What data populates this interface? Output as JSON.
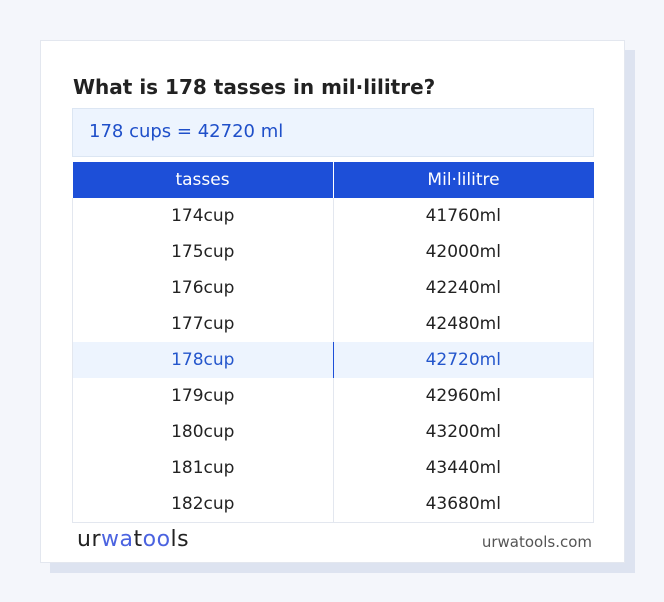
{
  "title": "What is 178 tasses in mil·lilitre?",
  "result": "178 cups = 42720 ml",
  "table": {
    "headers": [
      "tasses",
      "Mil·lilitre"
    ],
    "rows": [
      [
        "174cup",
        "41760ml"
      ],
      [
        "175cup",
        "42000ml"
      ],
      [
        "176cup",
        "42240ml"
      ],
      [
        "177cup",
        "42480ml"
      ],
      [
        "178cup",
        "42720ml"
      ],
      [
        "179cup",
        "42960ml"
      ],
      [
        "180cup",
        "43200ml"
      ],
      [
        "181cup",
        "43440ml"
      ],
      [
        "182cup",
        "43680ml"
      ]
    ],
    "highlight_index": 4
  },
  "footer": {
    "logo": "urwatools",
    "logo_parts": [
      "ur",
      "wa",
      "t",
      "oo",
      "ls"
    ],
    "site": "urwatools.com"
  },
  "colors": {
    "accent": "#1d4fd8",
    "highlight_bg": "#edf4fe"
  }
}
